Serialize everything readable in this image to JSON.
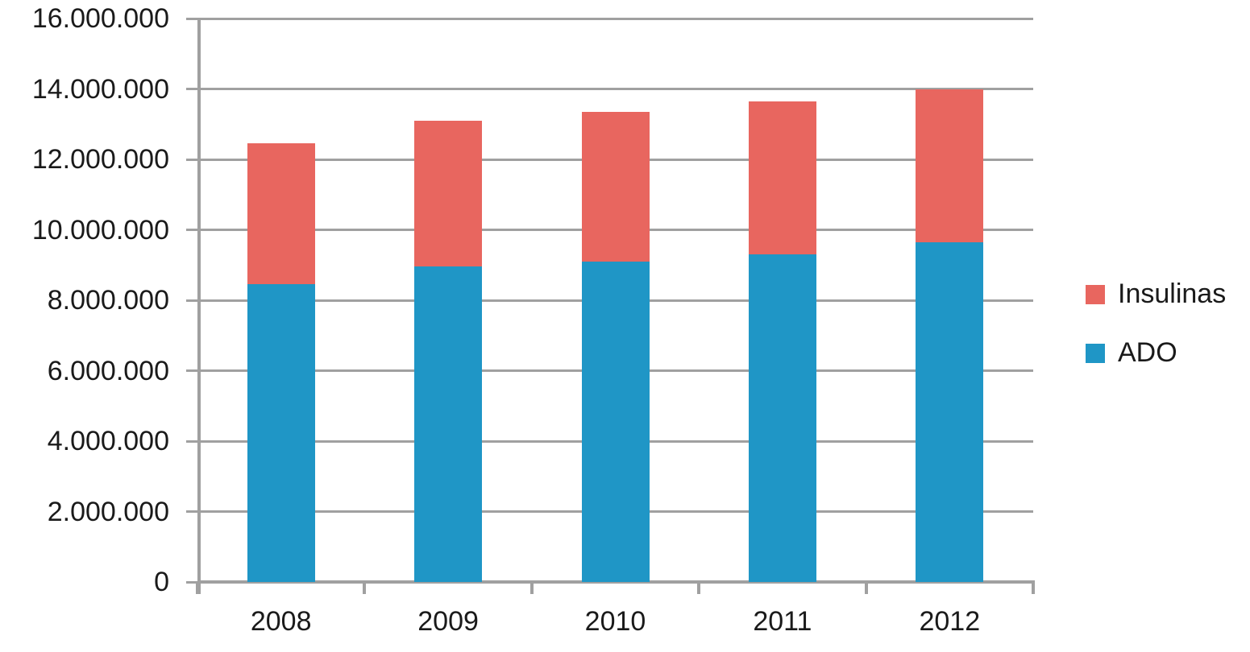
{
  "chart_data": {
    "type": "bar",
    "stacked": true,
    "title": "",
    "categories": [
      "2008",
      "2009",
      "2010",
      "2011",
      "2012"
    ],
    "series": [
      {
        "name": "ADO",
        "color": "#1f96c6",
        "values": [
          8450000,
          8950000,
          9100000,
          9300000,
          9650000
        ]
      },
      {
        "name": "Insulinas",
        "color": "#e8665f",
        "values": [
          4000000,
          4150000,
          4250000,
          4350000,
          4350000
        ]
      }
    ],
    "totals": [
      12450000,
      13100000,
      13350000,
      13650000,
      14000000
    ],
    "ylim": [
      0,
      16000000
    ],
    "ytick_step": 2000000,
    "ytick_labels": [
      "0",
      "2.000.000",
      "4.000.000",
      "6.000.000",
      "8.000.000",
      "10.000.000",
      "12.000.000",
      "14.000.000",
      "16.000.000"
    ],
    "xlabel": "",
    "ylabel": "",
    "grid": true,
    "legend_position": "right",
    "legend": [
      {
        "label": "Insulinas",
        "color": "#e8665f"
      },
      {
        "label": "ADO",
        "color": "#1f96c6"
      }
    ]
  },
  "colors": {
    "grid": "#a0a0a0",
    "axis": "#a0a0a0",
    "text": "#1a1a1a",
    "background": "#ffffff"
  }
}
